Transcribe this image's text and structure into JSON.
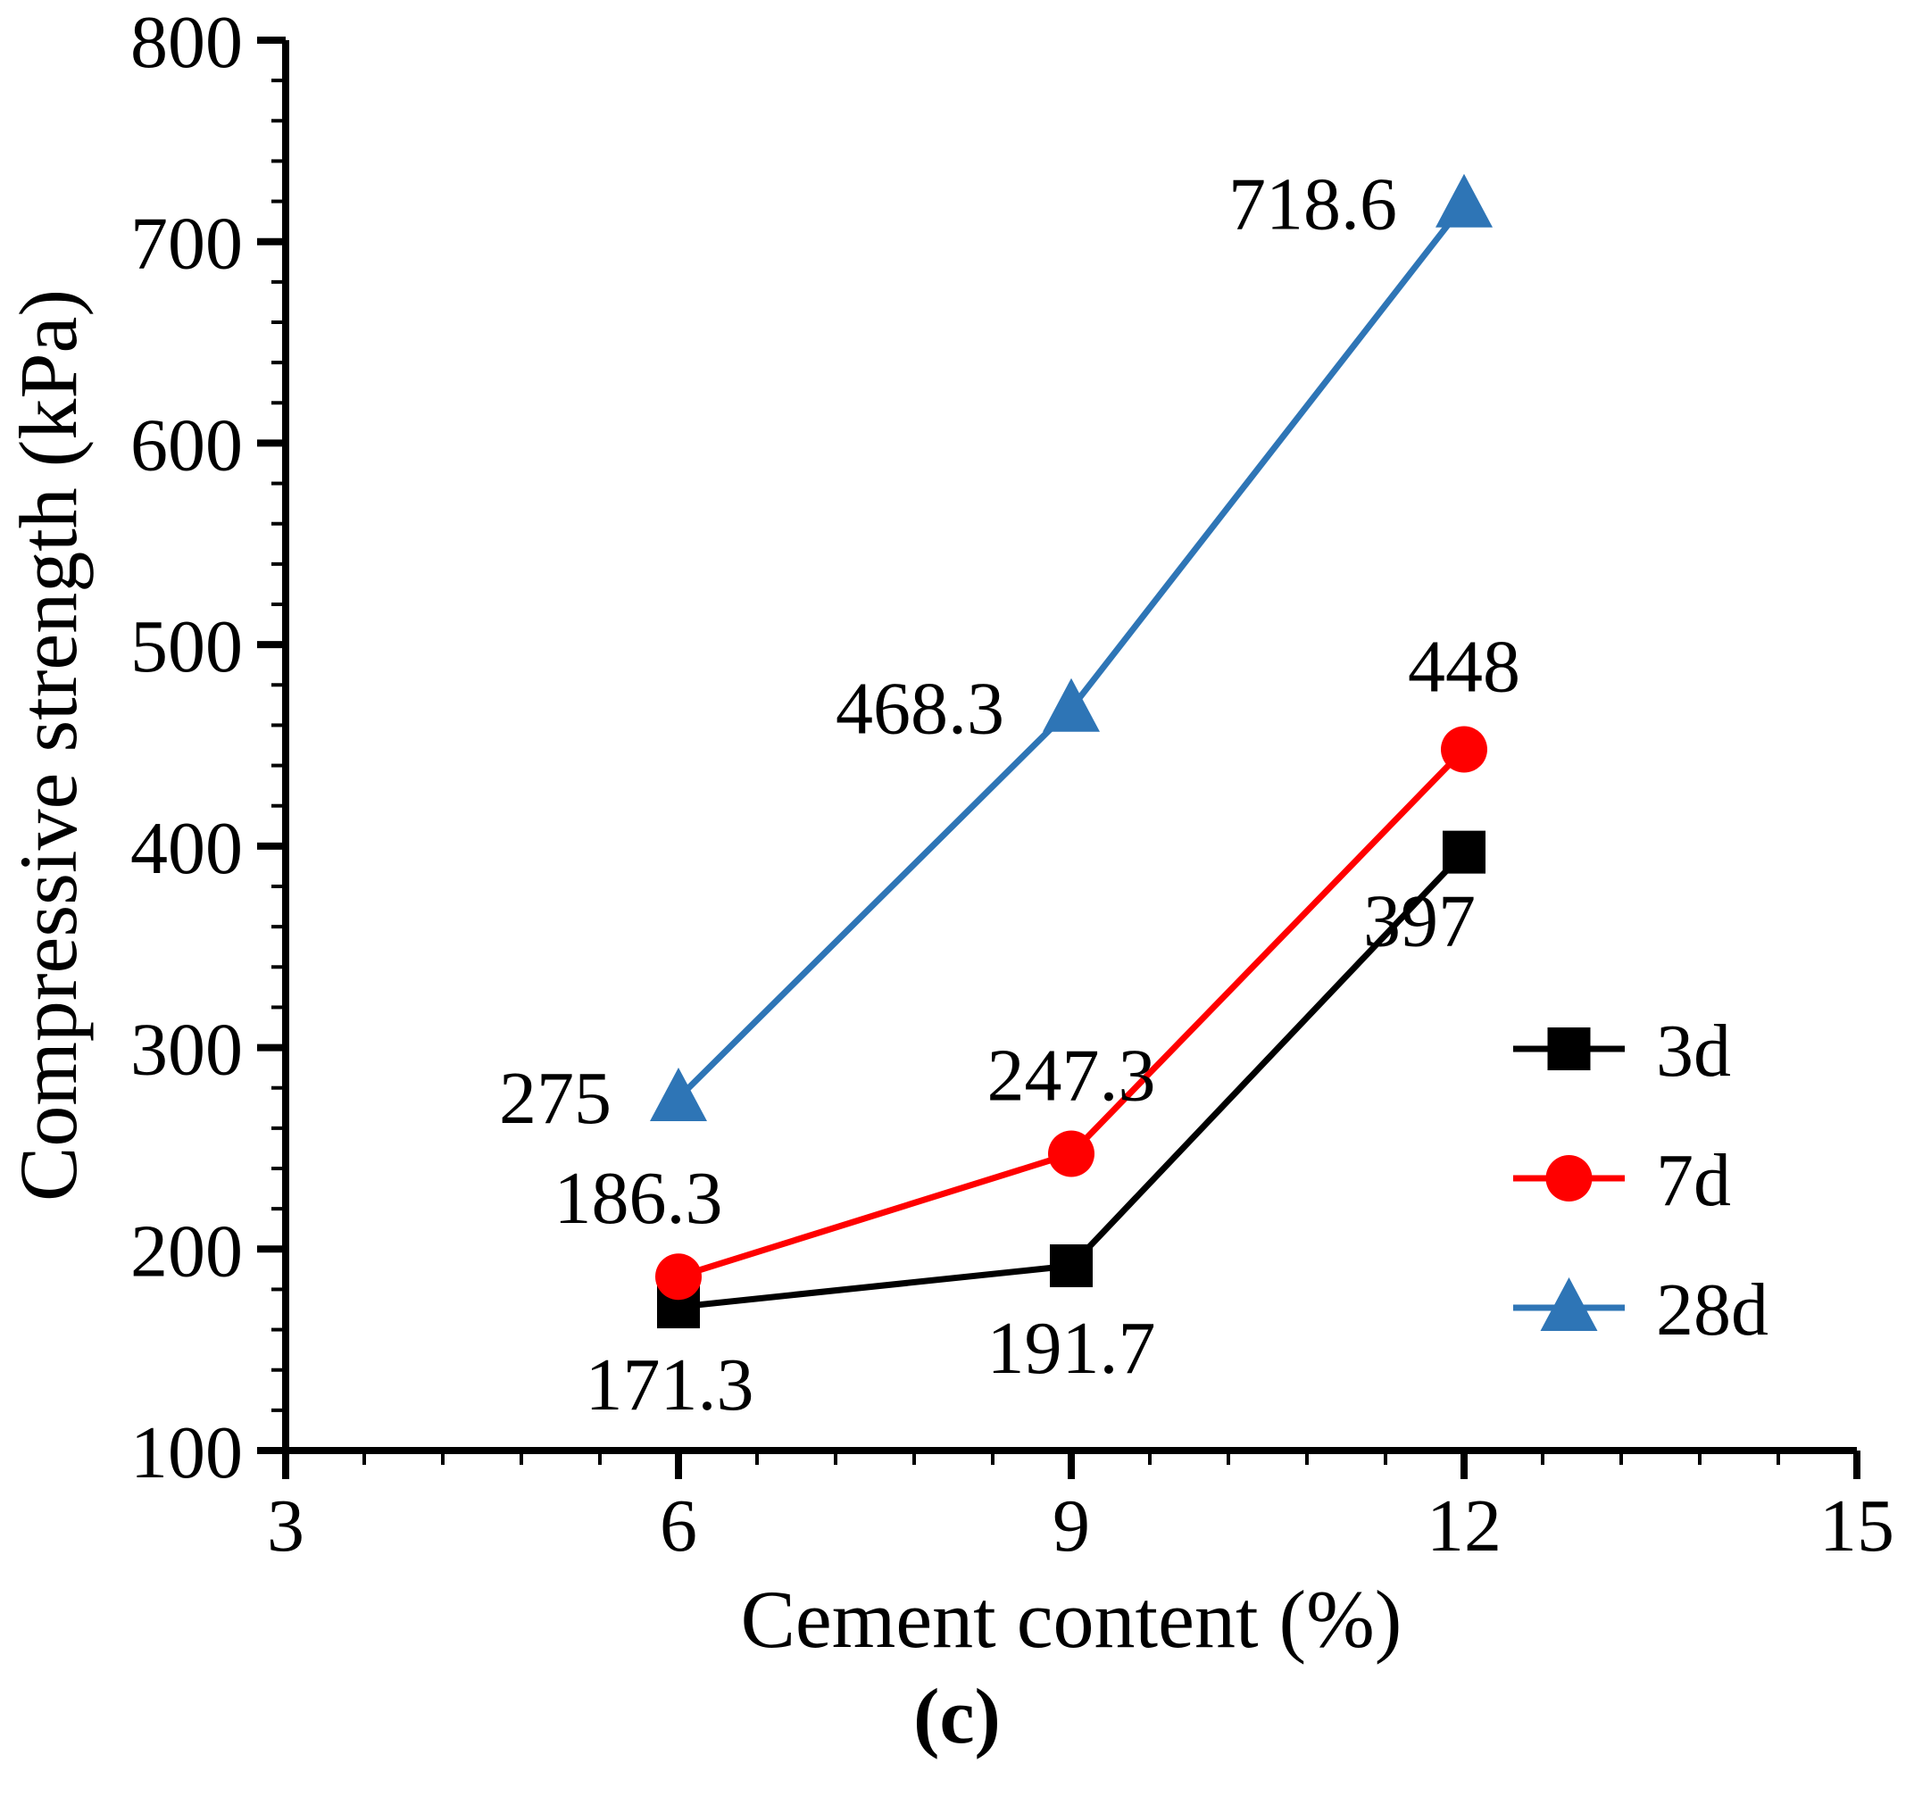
{
  "figure": {
    "caption": "(c)"
  },
  "chart_data": {
    "type": "line",
    "title": "",
    "xlabel": "Cement content (%)",
    "ylabel": "Compressive strength (kPa)",
    "x": [
      6,
      9,
      12
    ],
    "xlim": [
      3,
      15
    ],
    "ylim": [
      100,
      800
    ],
    "x_ticks": [
      3,
      6,
      9,
      12,
      15
    ],
    "y_ticks": [
      100,
      200,
      300,
      400,
      500,
      600,
      700,
      800
    ],
    "x_minor_step": 0.6,
    "y_minor_step": 20,
    "grid": false,
    "legend": {
      "position": "inside-right-middle",
      "entries": [
        "3d",
        "7d",
        "28d"
      ]
    },
    "series": [
      {
        "name": "3d",
        "color": "#000000",
        "marker": "square",
        "values": [
          171.3,
          191.7,
          397
        ],
        "label_anchor": "middle",
        "label_offsets": [
          [
            -10,
            115
          ],
          [
            0,
            120
          ],
          [
            -50,
            105
          ]
        ]
      },
      {
        "name": "7d",
        "color": "#ff0000",
        "marker": "circle",
        "values": [
          186.3,
          247.3,
          448
        ],
        "label_anchor": "middle",
        "label_offsets": [
          [
            -45,
            -60
          ],
          [
            0,
            -60
          ],
          [
            0,
            -65
          ]
        ]
      },
      {
        "name": "28d",
        "color": "#2e75b6",
        "marker": "triangle",
        "values": [
          275,
          468.3,
          718.6
        ],
        "label_anchor": "end",
        "label_offsets": [
          [
            -75,
            28
          ],
          [
            -75,
            28
          ],
          [
            -75,
            28
          ]
        ]
      }
    ]
  }
}
